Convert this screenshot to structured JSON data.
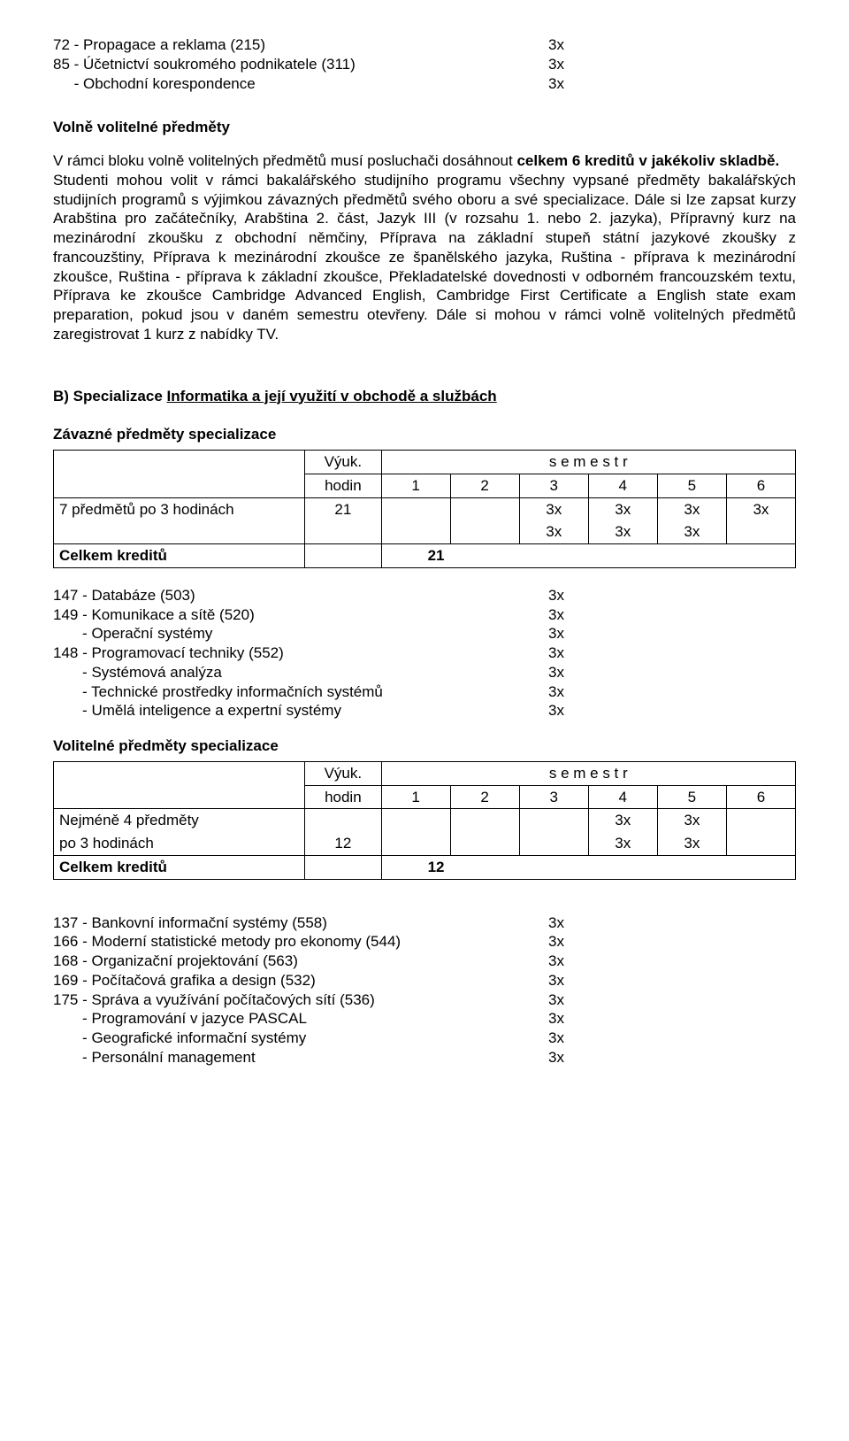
{
  "top_items": [
    {
      "label": "72 - Propagace a reklama (215)",
      "credits": "3x"
    },
    {
      "label": "85 - Účetnictví soukromého podnikatele (311)",
      "credits": "3x"
    },
    {
      "label": "     - Obchodní korespondence",
      "credits": "3x"
    }
  ],
  "section1_title": "Volně volitelné předměty",
  "para1": "V rámci bloku volně volitelných předmětů musí posluchači dosáhnout celkem 6 kreditů v jakékoliv skladbě.",
  "para2": "Studenti mohou volit v rámci bakalářského studijního programu všechny vypsané předměty bakalářských studijních programů s výjimkou závazných předmětů svého oboru a své specializace. Dále si lze zapsat kurzy Arabština pro začátečníky, Arabština 2. část, Jazyk III (v rozsahu 1. nebo 2. jazyka), Přípravný kurz na mezinárodní zkoušku z obchodní němčiny, Příprava na základní stupeň státní jazykové zkoušky z francouzštiny, Příprava k mezinárodní zkoušce ze španělského jazyka, Ruština - příprava k mezinárodní zkoušce, Ruština - příprava k základní zkoušce, Překladatelské dovednosti v odborném francouzském textu, Příprava ke zkoušce Cambridge Advanced English, Cambridge First Certificate a English state exam preparation, pokud jsou v daném semestru otevřeny. Dále si mohou v rámci volně volitelných předmětů zaregistrovat  1 kurz z nabídky TV.",
  "sectionB_title": "B) Specializace  Informatika a její využití v obchodě a službách",
  "sectionB_underline_prefix": "B) Specializace  ",
  "sectionB_underlined": "Informatika a její využití v obchodě a službách",
  "zav_title": "Závazné předměty specializace",
  "table_header": {
    "col_label": "",
    "vyuk": "Výuk.",
    "hodin": "hodin",
    "semestr": "s e m e s t r",
    "nums": [
      "1",
      "2",
      "3",
      "4",
      "5",
      "6"
    ]
  },
  "table1_row1": {
    "label": "7 předmětů po 3 hodinách",
    "hodin": "21",
    "c3": "3x",
    "c4": "3x",
    "c5": "3x",
    "c6": "3x"
  },
  "table1_row2": {
    "c3": "3x",
    "c4": "3x",
    "c5": "3x"
  },
  "table1_total_label": "Celkem kreditů",
  "table1_total_val": "21",
  "list1": [
    {
      "label": "147 - Databáze (503)",
      "credits": "3x"
    },
    {
      "label": "149 - Komunikace a sítě (520)",
      "credits": "3x"
    },
    {
      "label": "       - Operační systémy",
      "credits": "3x"
    },
    {
      "label": "148 - Programovací techniky (552)",
      "credits": "3x"
    },
    {
      "label": "       - Systémová analýza",
      "credits": "3x"
    },
    {
      "label": "       - Technické prostředky informačních systémů",
      "credits": "3x"
    },
    {
      "label": "       - Umělá inteligence a expertní systémy",
      "credits": "3x"
    }
  ],
  "vol_title": "Volitelné předměty specializace",
  "table2_row1": {
    "label": "Nejméně 4 předměty",
    "c4": "3x",
    "c5": "3x"
  },
  "table2_row2": {
    "label": "po 3 hodinách",
    "hodin": "12",
    "c4": "3x",
    "c5": "3x"
  },
  "table2_total_label": "Celkem kreditů",
  "table2_total_val": "12",
  "list2": [
    {
      "label": "137 - Bankovní informační systémy (558)",
      "credits": "3x"
    },
    {
      "label": "166 - Moderní statistické metody pro ekonomy (544)",
      "credits": "3x"
    },
    {
      "label": "168 - Organizační projektování (563)",
      "credits": "3x"
    },
    {
      "label": "169 - Počítačová grafika a design (532)",
      "credits": "3x"
    },
    {
      "label": "175 - Správa a využívání počítačových sítí (536)",
      "credits": "3x"
    },
    {
      "label": "       - Programování v jazyce PASCAL",
      "credits": "3x"
    },
    {
      "label": "       - Geografické informační systémy",
      "credits": "3x"
    },
    {
      "label": "       - Personální management",
      "credits": "3x"
    }
  ]
}
